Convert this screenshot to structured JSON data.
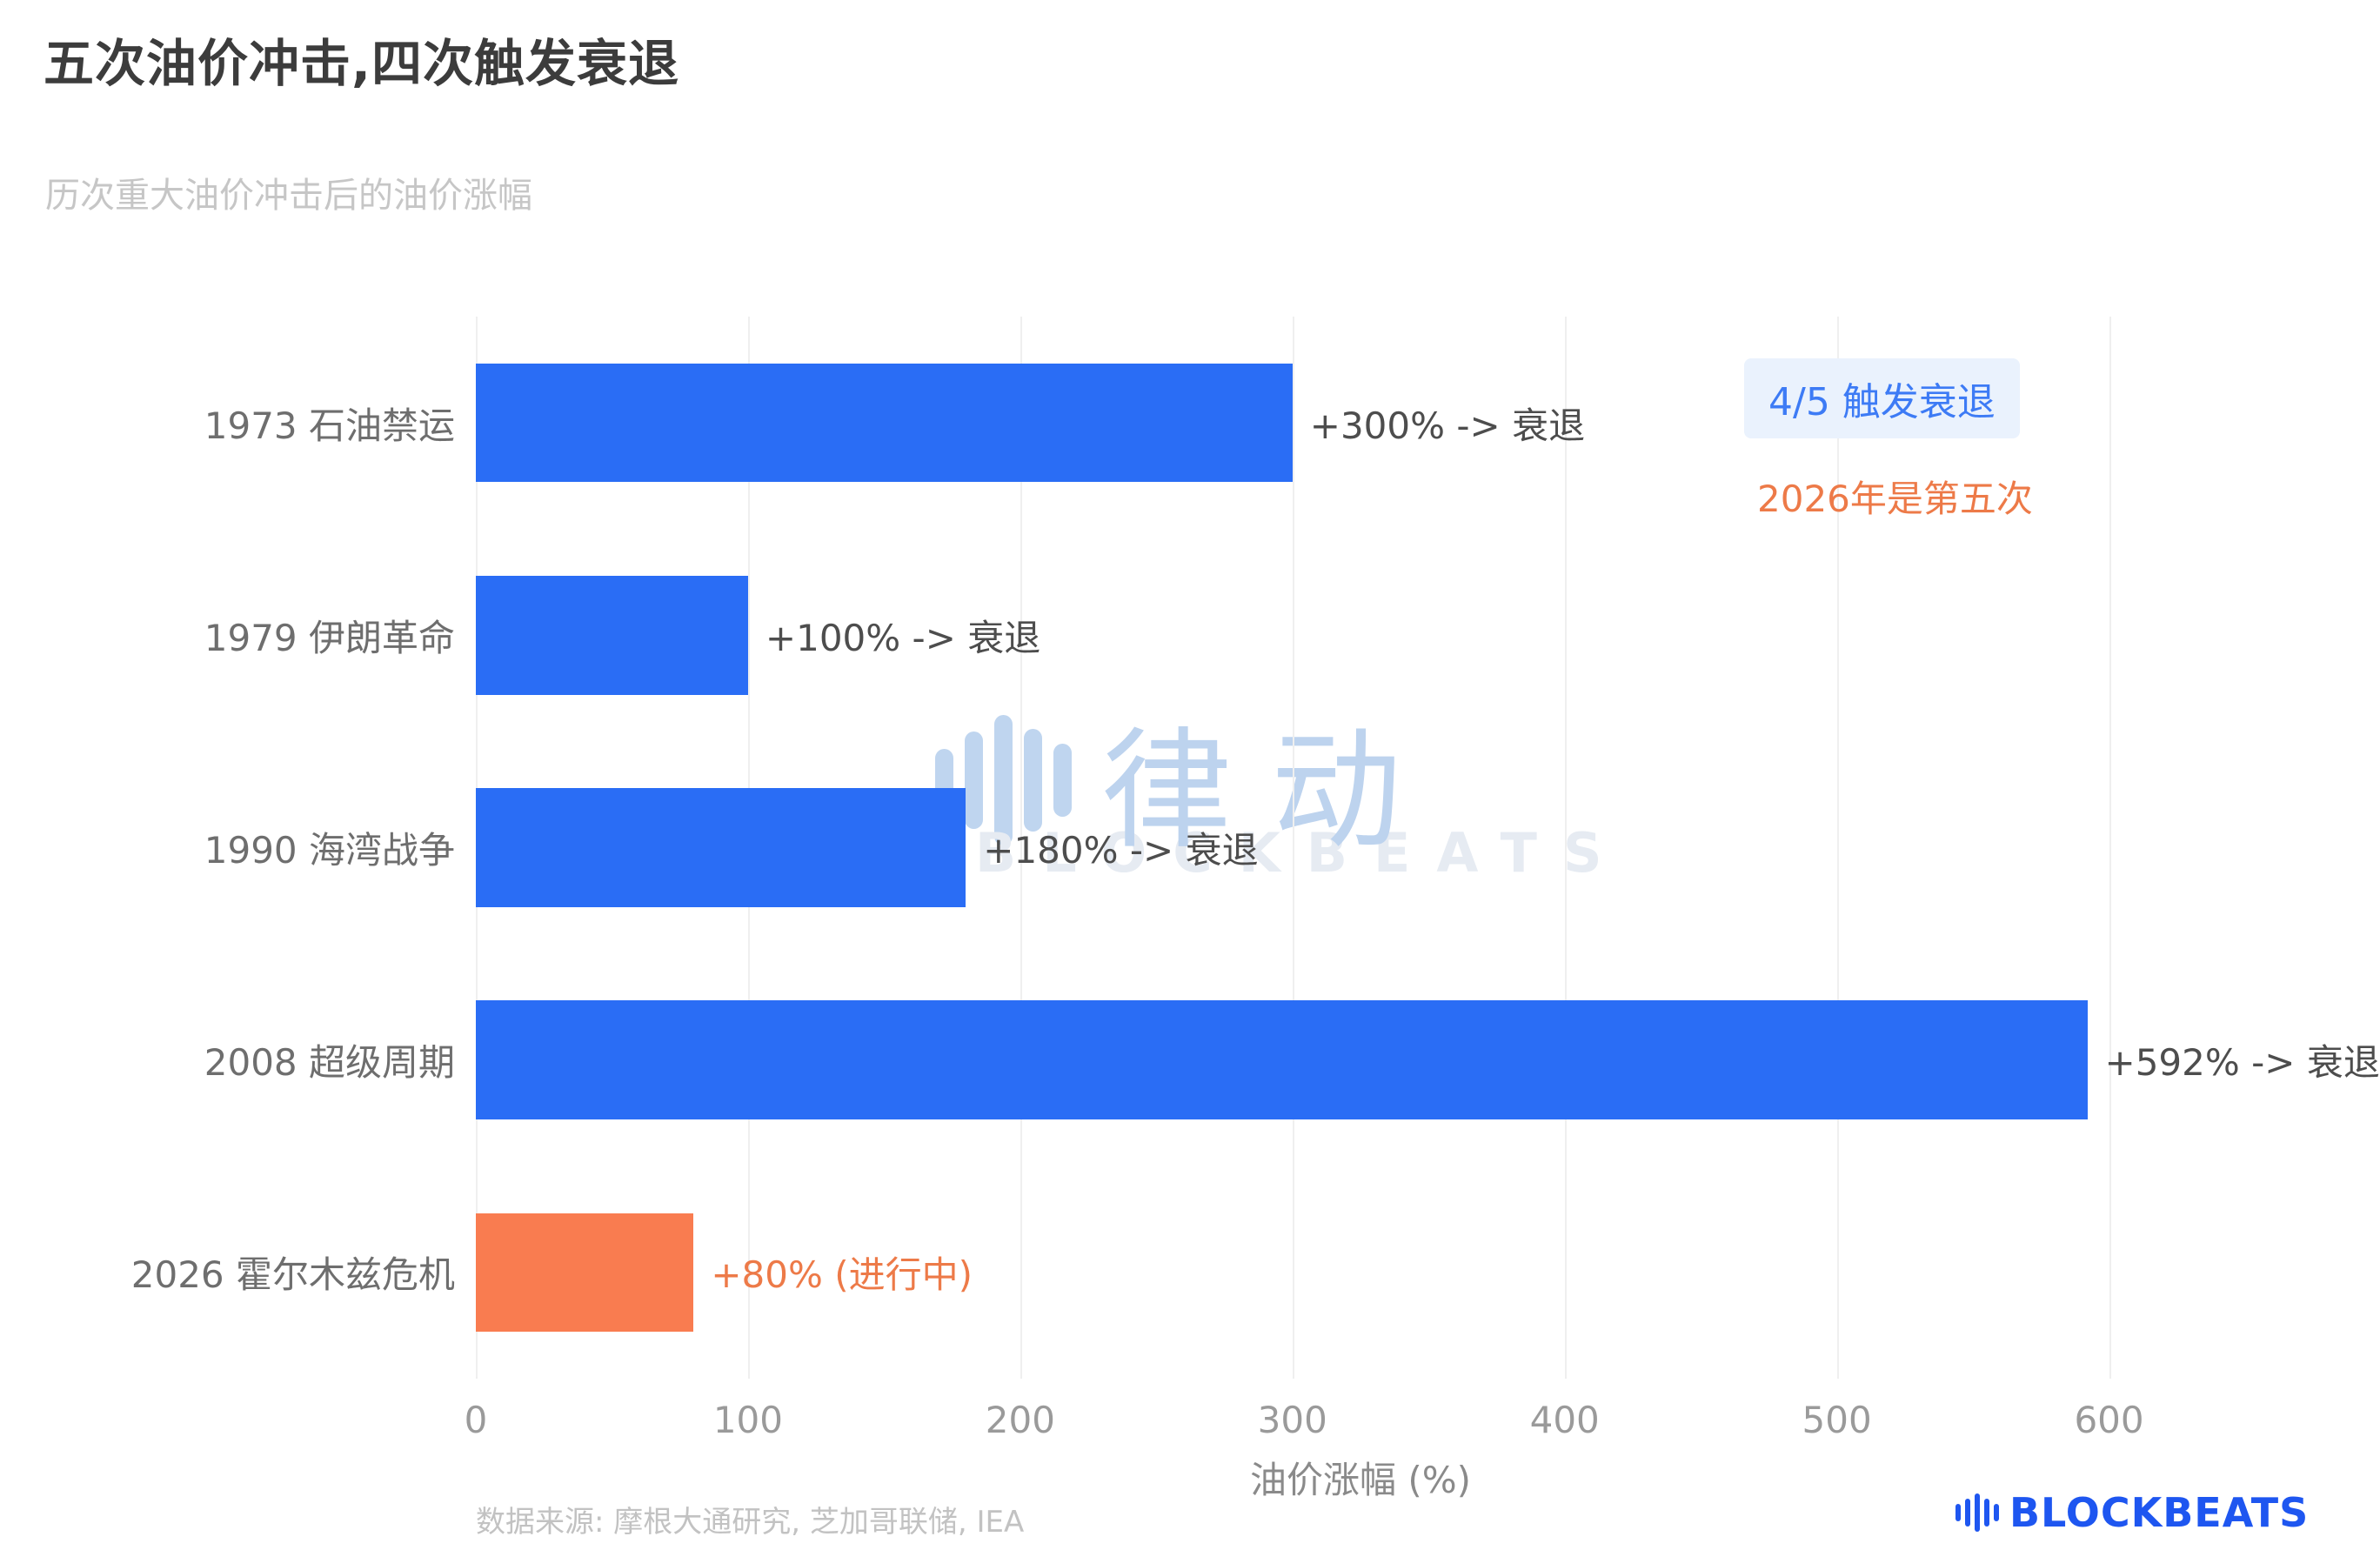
{
  "header": {
    "title": "五次油价冲击,四次触发衰退",
    "subtitle": "历次重大油价冲击后的油价涨幅"
  },
  "chart_data": {
    "type": "bar",
    "orientation": "horizontal",
    "title": "五次油价冲击,四次触发衰退",
    "subtitle": "历次重大油价冲击后的油价涨幅",
    "xlabel": "油价涨幅 (%)",
    "xlim": [
      0,
      650
    ],
    "x_ticks": [
      0,
      100,
      200,
      300,
      400,
      500,
      600
    ],
    "grid": "vertical",
    "legend": "none",
    "categories": [
      "1973 石油禁运",
      "1979 伊朗革命",
      "1990 海湾战争",
      "2008 超级周期",
      "2026 霍尔木兹危机"
    ],
    "values": [
      300,
      100,
      180,
      592,
      80
    ],
    "bar_labels": [
      "+300% -> 衰退",
      "+100% -> 衰退",
      "+180% -> 衰退",
      "+592% -> 衰退",
      "+80% (进行中)"
    ],
    "bar_colors": [
      "#2a6df5",
      "#2a6df5",
      "#2a6df5",
      "#2a6df5",
      "#f97c50"
    ],
    "bar_label_colors": [
      "#4d4d4d",
      "#4d4d4d",
      "#4d4d4d",
      "#4d4d4d",
      "#ed7a48"
    ]
  },
  "annotations": {
    "badge": "4/5 触发衰退",
    "note": "2026年是第五次"
  },
  "watermark": {
    "cn": "律动",
    "en": "BLOCKBEATS"
  },
  "footer": {
    "source": "数据来源: 摩根大通研究, 芝加哥联储, IEA"
  },
  "logo": {
    "text": "BLOCKBEATS"
  },
  "colors": {
    "bar_blue": "#2a6df5",
    "bar_orange": "#f97c50",
    "badge_text": "#3d7bf5",
    "badge_bg": "#eaf2fd",
    "note_text": "#ed7a48",
    "logo_blue": "#1e56f0"
  }
}
